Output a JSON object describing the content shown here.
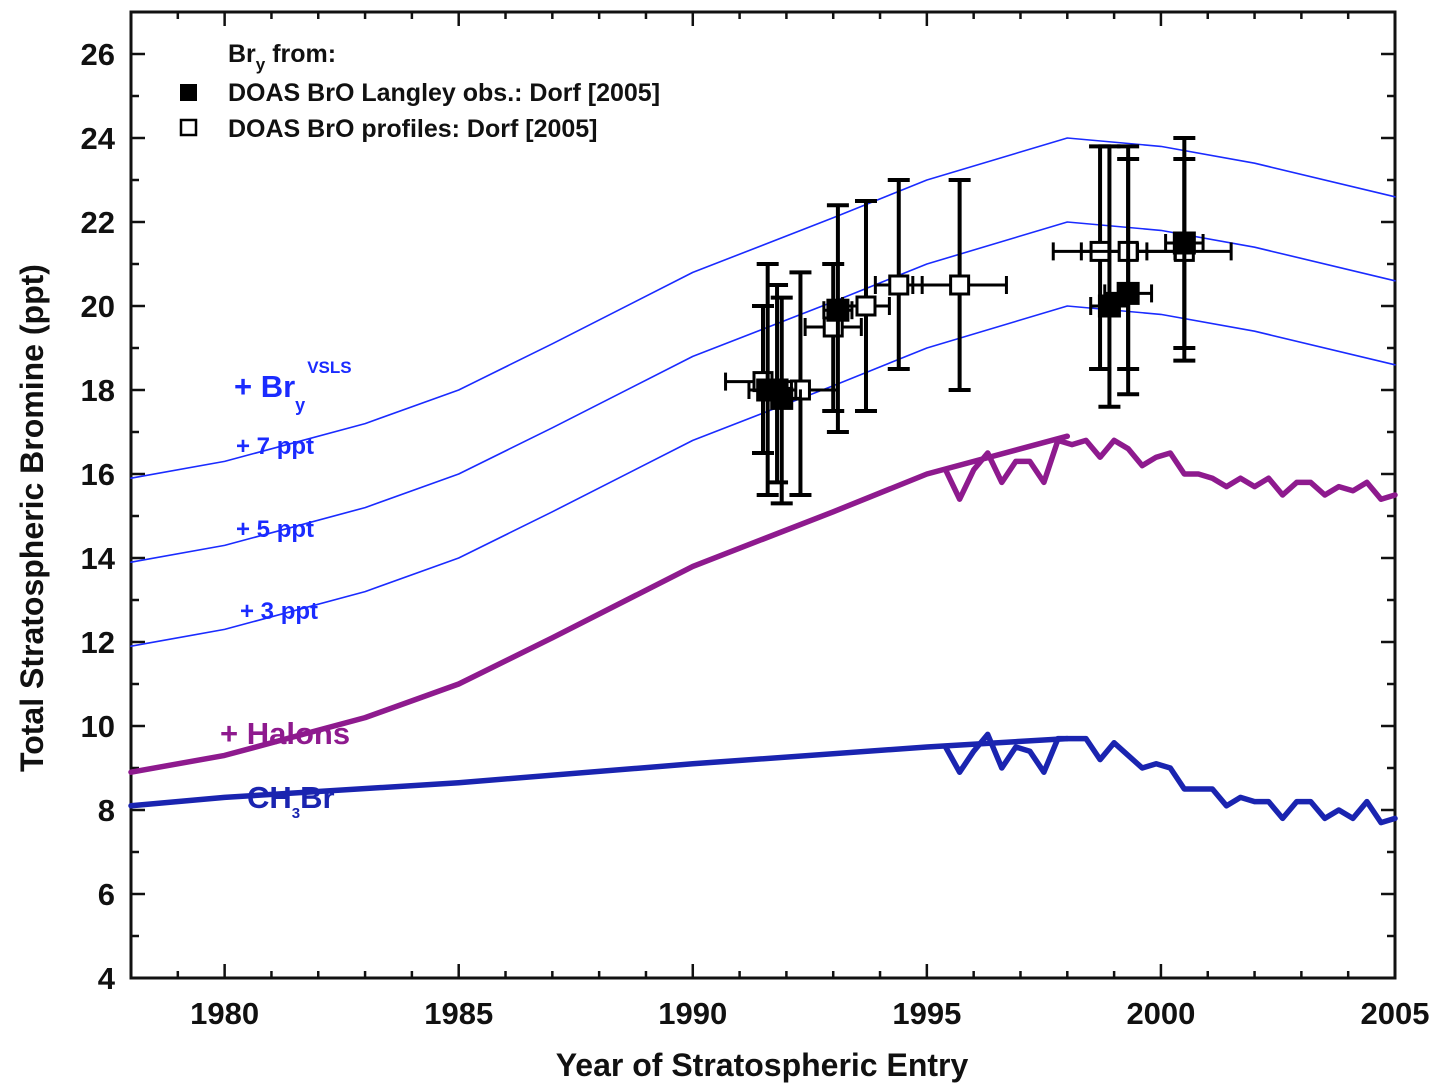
{
  "chart_data": {
    "type": "line",
    "xlabel": "Year of Stratospheric Entry",
    "ylabel": "Total Stratospheric Bromine (ppt)",
    "xlim": [
      1978,
      2005
    ],
    "ylim": [
      4,
      27
    ],
    "x_ticks": [
      1980,
      1985,
      1990,
      1995,
      2000,
      2005
    ],
    "y_ticks": [
      4,
      6,
      8,
      10,
      12,
      14,
      16,
      18,
      20,
      22,
      24,
      26
    ],
    "grid": false,
    "legend": {
      "title_main": "Br",
      "title_sub": "y",
      "title_rest": " from:",
      "placement": "top-left",
      "entries": [
        {
          "label": "DOAS BrO Langley obs.: Dorf [2005]",
          "marker": "filled-square"
        },
        {
          "label": "DOAS BrO profiles: Dorf [2005]",
          "marker": "open-square"
        }
      ]
    },
    "annotations": {
      "vsls_prefix": "+ Br",
      "vsls_sub": "y",
      "vsls_sup": "VSLS",
      "plus7": "+ 7 ppt",
      "plus5": "+ 5 ppt",
      "plus3": "+ 3 ppt",
      "halons": "+ Halons",
      "ch3br_a": "CH",
      "ch3br_sub": "3",
      "ch3br_b": "Br"
    },
    "colors": {
      "vsls": "#1a2bff",
      "halons": "#8e1a8e",
      "ch3br": "#1a24b0",
      "obs": "#000000"
    },
    "series": [
      {
        "name": "CH3Br",
        "x": [
          1978,
          1980,
          1985,
          1990,
          1995,
          1998
        ],
        "y": [
          8.1,
          8.3,
          8.65,
          9.1,
          9.5,
          9.7
        ]
      },
      {
        "name": "CH3Br",
        "x": [
          1995.4,
          1995.7,
          1996.0,
          1996.3,
          1996.6,
          1996.9,
          1997.2,
          1997.5,
          1997.8,
          1998.1,
          1998.4,
          1998.7,
          1999.0,
          1999.3,
          1999.6,
          1999.9,
          2000.2,
          2000.5,
          2000.8,
          2001.1,
          2001.4,
          2001.7,
          2002.0,
          2002.3,
          2002.6,
          2002.9,
          2003.2,
          2003.5,
          2003.8,
          2004.1,
          2004.4,
          2004.7,
          2005.0
        ],
        "y": [
          9.5,
          8.9,
          9.4,
          9.8,
          9.0,
          9.5,
          9.4,
          8.9,
          9.7,
          9.7,
          9.7,
          9.2,
          9.6,
          9.3,
          9.0,
          9.1,
          9.0,
          8.5,
          8.5,
          8.5,
          8.1,
          8.3,
          8.2,
          8.2,
          7.8,
          8.2,
          8.2,
          7.8,
          8.0,
          7.8,
          8.2,
          7.7,
          7.8
        ]
      },
      {
        "name": "Halons",
        "x": [
          1978,
          1980,
          1983,
          1985,
          1987,
          1990,
          1993,
          1995,
          1998
        ],
        "y": [
          8.9,
          9.3,
          10.2,
          11.0,
          12.1,
          13.8,
          15.1,
          16.0,
          16.9
        ]
      },
      {
        "name": "Halons",
        "x": [
          1995.4,
          1995.7,
          1996.0,
          1996.3,
          1996.6,
          1996.9,
          1997.2,
          1997.5,
          1997.8,
          1998.1,
          1998.4,
          1998.7,
          1999.0,
          1999.3,
          1999.6,
          1999.9,
          2000.2,
          2000.5,
          2000.8,
          2001.1,
          2001.4,
          2001.7,
          2002.0,
          2002.3,
          2002.6,
          2002.9,
          2003.2,
          2003.5,
          2003.8,
          2004.1,
          2004.4,
          2004.7,
          2005.0
        ],
        "y": [
          16.1,
          15.4,
          16.1,
          16.5,
          15.8,
          16.3,
          16.3,
          15.8,
          16.8,
          16.7,
          16.8,
          16.4,
          16.8,
          16.6,
          16.2,
          16.4,
          16.5,
          16.0,
          16.0,
          15.9,
          15.7,
          15.9,
          15.7,
          15.9,
          15.5,
          15.8,
          15.8,
          15.5,
          15.7,
          15.6,
          15.8,
          15.4,
          15.5
        ]
      },
      {
        "name": "+ 3 ppt",
        "x": [
          1978,
          1980,
          1983,
          1985,
          1987,
          1990,
          1993,
          1995,
          1998,
          2000,
          2002,
          2005
        ],
        "y": [
          11.9,
          12.3,
          13.2,
          14.0,
          15.1,
          16.8,
          18.1,
          19.0,
          20.0,
          19.8,
          19.4,
          18.6
        ]
      },
      {
        "name": "+ 5 ppt",
        "x": [
          1978,
          1980,
          1983,
          1985,
          1987,
          1990,
          1993,
          1995,
          1998,
          2000,
          2002,
          2005
        ],
        "y": [
          13.9,
          14.3,
          15.2,
          16.0,
          17.1,
          18.8,
          20.1,
          21.0,
          22.0,
          21.8,
          21.4,
          20.6
        ]
      },
      {
        "name": "+ 7 ppt",
        "x": [
          1978,
          1980,
          1983,
          1985,
          1987,
          1990,
          1993,
          1995,
          1998,
          2000,
          2002,
          2005
        ],
        "y": [
          15.9,
          16.3,
          17.2,
          18.0,
          19.1,
          20.8,
          22.1,
          23.0,
          24.0,
          23.8,
          23.4,
          22.6
        ]
      }
    ],
    "observations_langley": [
      {
        "x": 1991.6,
        "y": 18.0,
        "ylo": 15.5,
        "yhi": 21.0,
        "xerr": 0.4
      },
      {
        "x": 1991.8,
        "y": 18.0,
        "ylo": 15.8,
        "yhi": 20.5,
        "xerr": 0.4
      },
      {
        "x": 1991.9,
        "y": 17.8,
        "ylo": 15.3,
        "yhi": 20.2,
        "xerr": 0.4
      },
      {
        "x": 1993.1,
        "y": 19.9,
        "ylo": 17.0,
        "yhi": 22.4,
        "xerr": 0.3
      },
      {
        "x": 1998.9,
        "y": 20.0,
        "ylo": 17.6,
        "yhi": 23.8,
        "xerr": 0.4
      },
      {
        "x": 1999.3,
        "y": 20.3,
        "ylo": 17.9,
        "yhi": 23.8,
        "xerr": 0.5
      },
      {
        "x": 2000.5,
        "y": 21.5,
        "ylo": 18.7,
        "yhi": 24.0,
        "xerr": 0.4
      }
    ],
    "observations_profiles": [
      {
        "x": 1991.5,
        "y": 18.2,
        "ylo": 16.5,
        "yhi": 20.0,
        "xerr": 0.8
      },
      {
        "x": 1992.3,
        "y": 18.0,
        "ylo": 15.5,
        "yhi": 20.8,
        "xerr": 0.8
      },
      {
        "x": 1993.0,
        "y": 19.5,
        "ylo": 17.5,
        "yhi": 21.0,
        "xerr": 0.6
      },
      {
        "x": 1993.7,
        "y": 20.0,
        "ylo": 17.5,
        "yhi": 22.5,
        "xerr": 0.5
      },
      {
        "x": 1994.4,
        "y": 20.5,
        "ylo": 18.5,
        "yhi": 23.0,
        "xerr": 0.5
      },
      {
        "x": 1995.7,
        "y": 20.5,
        "ylo": 18.0,
        "yhi": 23.0,
        "xerr": 1.0
      },
      {
        "x": 1998.7,
        "y": 21.3,
        "ylo": 18.5,
        "yhi": 23.8,
        "xerr": 1.0
      },
      {
        "x": 1999.3,
        "y": 21.3,
        "ylo": 18.5,
        "yhi": 23.5,
        "xerr": 1.0
      },
      {
        "x": 2000.5,
        "y": 21.3,
        "ylo": 19.0,
        "yhi": 23.5,
        "xerr": 1.0
      }
    ]
  }
}
